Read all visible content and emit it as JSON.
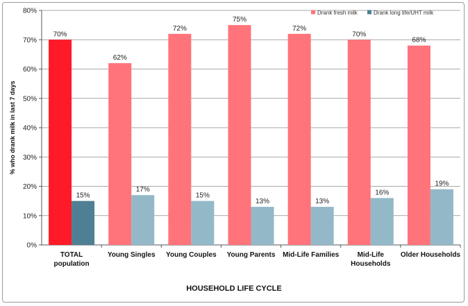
{
  "chart_data": {
    "type": "bar",
    "title": "",
    "xlabel": "HOUSEHOLD LIFE CYCLE",
    "ylabel": "% who drank milk in last 7 days",
    "ylim": [
      0,
      80
    ],
    "y_ticks": [
      "0%",
      "10%",
      "20%",
      "30%",
      "40%",
      "50%",
      "60%",
      "70%",
      "80%"
    ],
    "grid": true,
    "legend_position": "top-right",
    "categories": [
      [
        "TOTAL",
        "population"
      ],
      [
        "Young Singles"
      ],
      [
        "Young Couples"
      ],
      [
        "Young Parents"
      ],
      [
        "Mid-Life Families"
      ],
      [
        "Mid-Life",
        "Households"
      ],
      [
        "Older Households"
      ]
    ],
    "series": [
      {
        "name": "Drank fresh milk",
        "values": [
          70,
          62,
          72,
          75,
          72,
          70,
          68
        ],
        "labels": [
          "70%",
          "62%",
          "72%",
          "75%",
          "72%",
          "70%",
          "68%"
        ],
        "color": "#ff737b",
        "highlight_color": "#ff1a27"
      },
      {
        "name": "Drank long life/UHT milk",
        "values": [
          15,
          17,
          15,
          13,
          13,
          16,
          19
        ],
        "labels": [
          "15%",
          "17%",
          "15%",
          "13%",
          "13%",
          "16%",
          "19%"
        ],
        "color": "#93b9c8",
        "highlight_color": "#4f7f94"
      }
    ],
    "highlighted_category_index": 0
  }
}
